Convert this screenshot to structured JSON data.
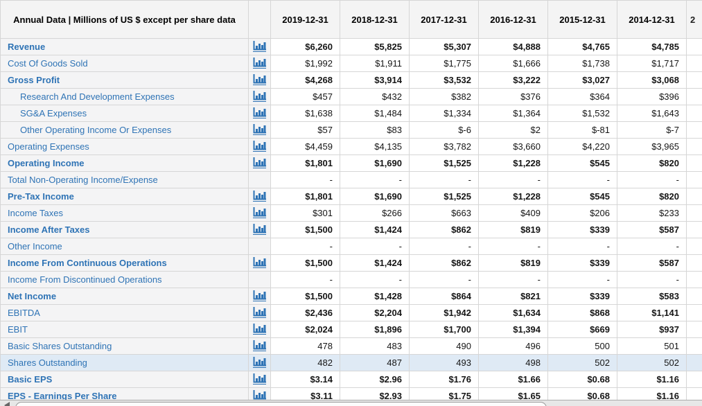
{
  "table": {
    "unit_header": "Annual Data | Millions of US $ except per share data",
    "columns": [
      "2019-12-31",
      "2018-12-31",
      "2017-12-31",
      "2016-12-31",
      "2015-12-31",
      "2014-12-31"
    ],
    "partial_next_column": "2",
    "rows": [
      {
        "label": "Revenue",
        "bold": true,
        "indent": false,
        "chart": true,
        "highlight": false,
        "values": [
          "$6,260",
          "$5,825",
          "$5,307",
          "$4,888",
          "$4,765",
          "$4,785"
        ]
      },
      {
        "label": "Cost Of Goods Sold",
        "bold": false,
        "indent": false,
        "chart": true,
        "highlight": false,
        "values": [
          "$1,992",
          "$1,911",
          "$1,775",
          "$1,666",
          "$1,738",
          "$1,717"
        ]
      },
      {
        "label": "Gross Profit",
        "bold": true,
        "indent": false,
        "chart": true,
        "highlight": false,
        "values": [
          "$4,268",
          "$3,914",
          "$3,532",
          "$3,222",
          "$3,027",
          "$3,068"
        ]
      },
      {
        "label": "Research And Development Expenses",
        "bold": false,
        "indent": true,
        "chart": true,
        "highlight": false,
        "values": [
          "$457",
          "$432",
          "$382",
          "$376",
          "$364",
          "$396"
        ]
      },
      {
        "label": "SG&A Expenses",
        "bold": false,
        "indent": true,
        "chart": true,
        "highlight": false,
        "values": [
          "$1,638",
          "$1,484",
          "$1,334",
          "$1,364",
          "$1,532",
          "$1,643"
        ]
      },
      {
        "label": "Other Operating Income Or Expenses",
        "bold": false,
        "indent": true,
        "chart": true,
        "highlight": false,
        "values": [
          "$57",
          "$83",
          "$-6",
          "$2",
          "$-81",
          "$-7"
        ]
      },
      {
        "label": "Operating Expenses",
        "bold": false,
        "indent": false,
        "chart": true,
        "highlight": false,
        "values": [
          "$4,459",
          "$4,135",
          "$3,782",
          "$3,660",
          "$4,220",
          "$3,965"
        ]
      },
      {
        "label": "Operating Income",
        "bold": true,
        "indent": false,
        "chart": true,
        "highlight": false,
        "values": [
          "$1,801",
          "$1,690",
          "$1,525",
          "$1,228",
          "$545",
          "$820"
        ]
      },
      {
        "label": "Total Non-Operating Income/Expense",
        "bold": false,
        "indent": false,
        "chart": false,
        "highlight": false,
        "values": [
          "-",
          "-",
          "-",
          "-",
          "-",
          "-"
        ]
      },
      {
        "label": "Pre-Tax Income",
        "bold": true,
        "indent": false,
        "chart": true,
        "highlight": false,
        "values": [
          "$1,801",
          "$1,690",
          "$1,525",
          "$1,228",
          "$545",
          "$820"
        ]
      },
      {
        "label": "Income Taxes",
        "bold": false,
        "indent": false,
        "chart": true,
        "highlight": false,
        "values": [
          "$301",
          "$266",
          "$663",
          "$409",
          "$206",
          "$233"
        ]
      },
      {
        "label": "Income After Taxes",
        "bold": true,
        "indent": false,
        "chart": true,
        "highlight": false,
        "values": [
          "$1,500",
          "$1,424",
          "$862",
          "$819",
          "$339",
          "$587"
        ]
      },
      {
        "label": "Other Income",
        "bold": false,
        "indent": false,
        "chart": false,
        "highlight": false,
        "values": [
          "-",
          "-",
          "-",
          "-",
          "-",
          "-"
        ]
      },
      {
        "label": "Income From Continuous Operations",
        "bold": true,
        "indent": false,
        "chart": true,
        "highlight": false,
        "values": [
          "$1,500",
          "$1,424",
          "$862",
          "$819",
          "$339",
          "$587"
        ]
      },
      {
        "label": "Income From Discontinued Operations",
        "bold": false,
        "indent": false,
        "chart": false,
        "highlight": false,
        "values": [
          "-",
          "-",
          "-",
          "-",
          "-",
          "-"
        ]
      },
      {
        "label": "Net Income",
        "bold": true,
        "indent": false,
        "chart": true,
        "highlight": false,
        "values": [
          "$1,500",
          "$1,428",
          "$864",
          "$821",
          "$339",
          "$583"
        ]
      },
      {
        "label": "EBITDA",
        "bold": false,
        "bold_values": true,
        "indent": false,
        "chart": true,
        "highlight": false,
        "values": [
          "$2,436",
          "$2,204",
          "$1,942",
          "$1,634",
          "$868",
          "$1,141"
        ]
      },
      {
        "label": "EBIT",
        "bold": false,
        "bold_values": true,
        "indent": false,
        "chart": true,
        "highlight": false,
        "values": [
          "$2,024",
          "$1,896",
          "$1,700",
          "$1,394",
          "$669",
          "$937"
        ]
      },
      {
        "label": "Basic Shares Outstanding",
        "bold": false,
        "indent": false,
        "chart": true,
        "highlight": false,
        "values": [
          "478",
          "483",
          "490",
          "496",
          "500",
          "501"
        ]
      },
      {
        "label": "Shares Outstanding",
        "bold": false,
        "indent": false,
        "chart": true,
        "highlight": true,
        "values": [
          "482",
          "487",
          "493",
          "498",
          "502",
          "502"
        ]
      },
      {
        "label": "Basic EPS",
        "bold": true,
        "indent": false,
        "chart": true,
        "highlight": false,
        "values": [
          "$3.14",
          "$2.96",
          "$1.76",
          "$1.66",
          "$0.68",
          "$1.16"
        ]
      },
      {
        "label": "EPS - Earnings Per Share",
        "bold": true,
        "indent": false,
        "chart": true,
        "highlight": false,
        "values": [
          "$3.11",
          "$2.93",
          "$1.75",
          "$1.65",
          "$0.68",
          "$1.16"
        ]
      }
    ]
  },
  "icons": {
    "row_chart": "bar-chart-icon",
    "scrollbar_left": "left-arrow-icon"
  },
  "colors": {
    "link_blue": "#2e73b5",
    "row_highlight": "#dfeaf5",
    "header_bg": "#f4f4f4",
    "label_cell_bg": "#f4f4f5",
    "border": "#d6d6d6"
  }
}
